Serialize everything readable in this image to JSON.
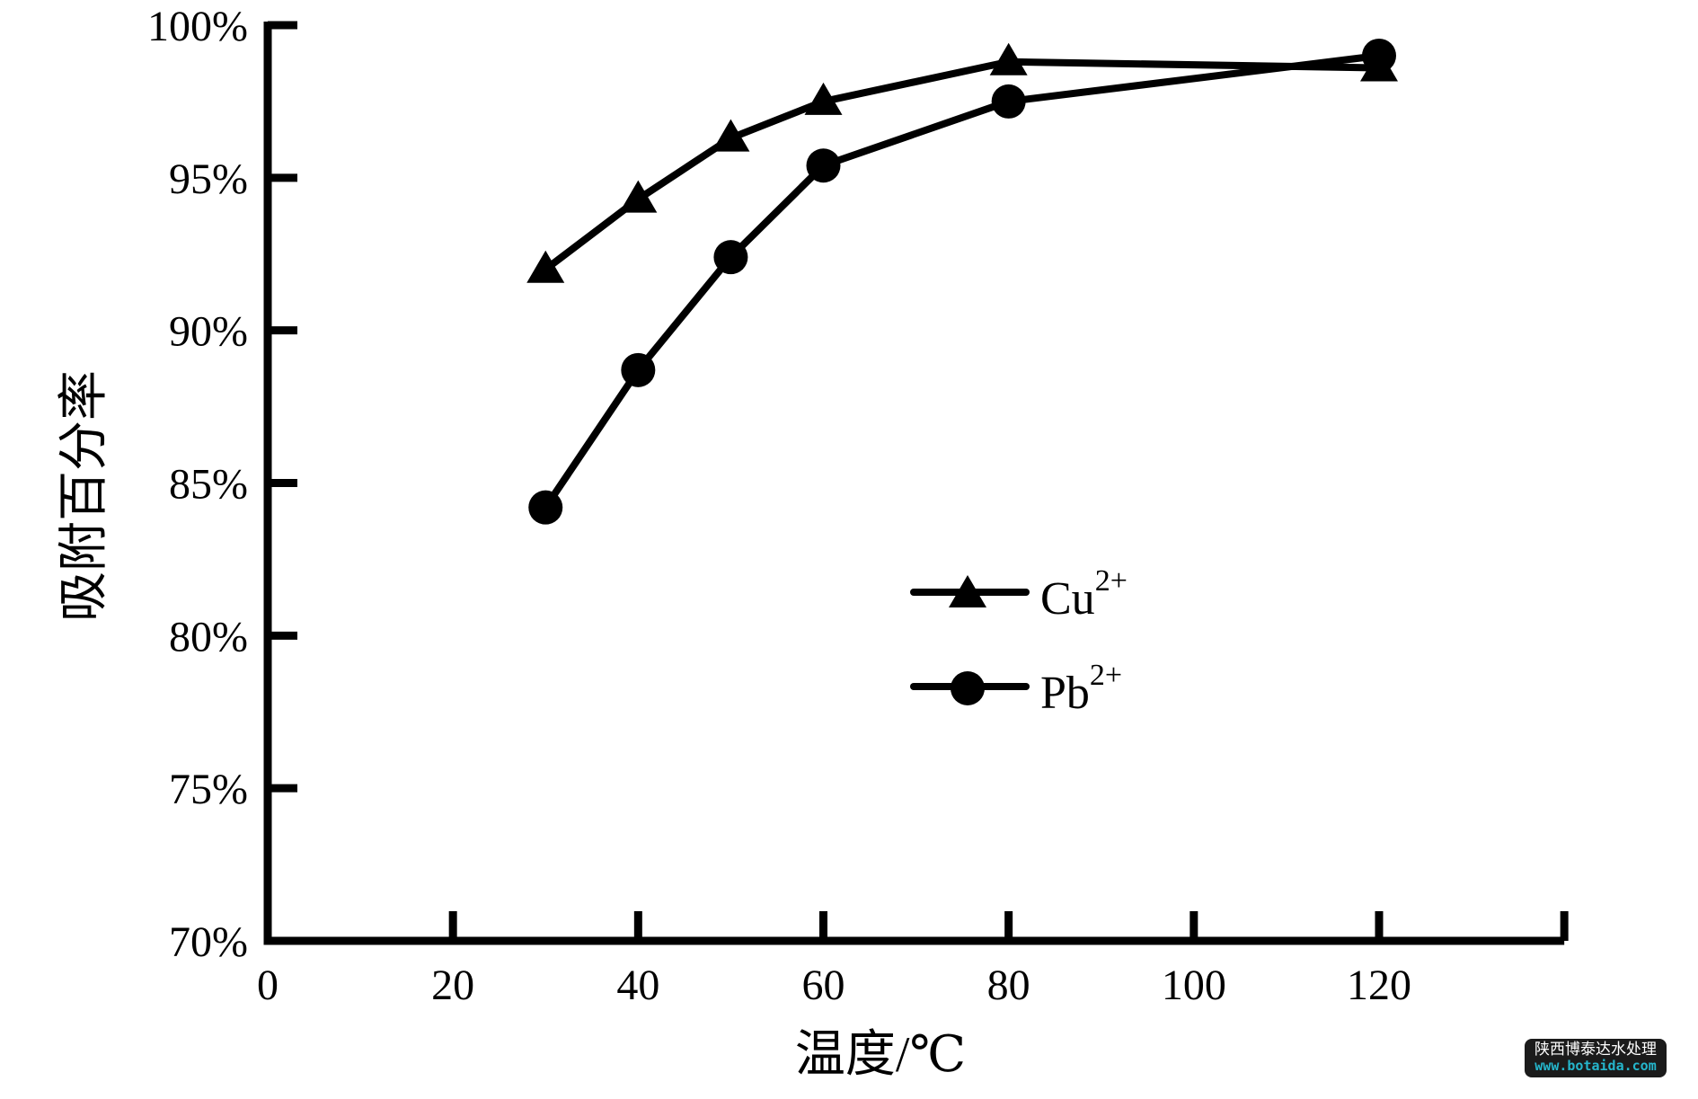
{
  "chart_data": {
    "type": "line",
    "title": "",
    "xlabel": "温度/℃",
    "ylabel": "吸附百分率",
    "xlim": [
      0,
      140
    ],
    "ylim": [
      70,
      100
    ],
    "xticks": [
      0,
      20,
      40,
      60,
      80,
      100,
      120
    ],
    "x_axis_end_tick": 140,
    "yticks": [
      70,
      75,
      80,
      85,
      90,
      95,
      100
    ],
    "ytick_suffix": "%",
    "grid": false,
    "legend_position": "inside-center-right",
    "x": [
      30,
      40,
      50,
      60,
      80,
      120
    ],
    "series": [
      {
        "name_base": "Cu",
        "name_sup": "2+",
        "marker": "triangle",
        "color": "#000000",
        "values": [
          92.0,
          94.3,
          96.3,
          97.5,
          98.8,
          98.6
        ]
      },
      {
        "name_base": "Pb",
        "name_sup": "2+",
        "marker": "circle",
        "color": "#000000",
        "values": [
          84.2,
          88.7,
          92.4,
          95.4,
          97.5,
          99.0
        ]
      }
    ]
  },
  "watermark": {
    "line1": "陕西博泰达水处理",
    "line2": "www.botaida.com",
    "bg_color": "#1b1b1b",
    "line1_color": "#ffffff",
    "line2_color": "#25b6cc"
  }
}
